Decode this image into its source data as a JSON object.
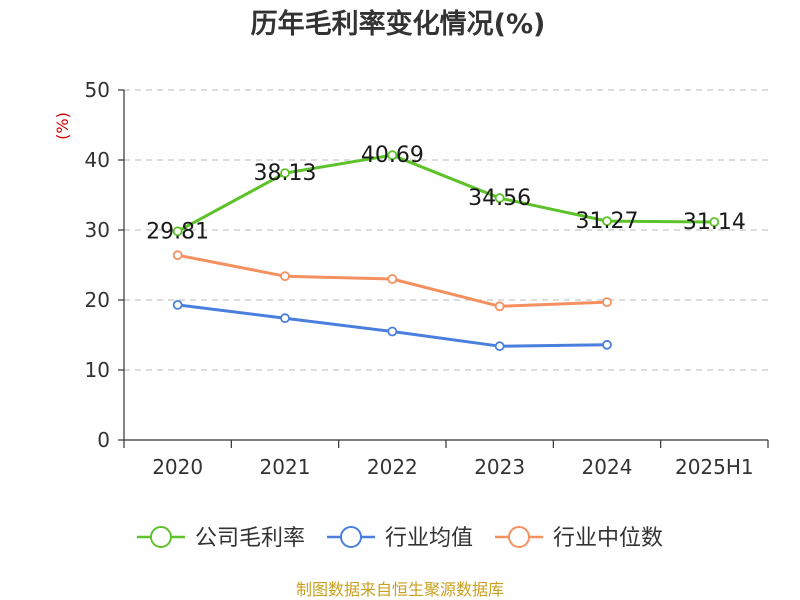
{
  "chart_data": {
    "type": "line",
    "title": "历年毛利率变化情况(%)",
    "ylabel": "(%)",
    "categories": [
      "2020",
      "2021",
      "2022",
      "2023",
      "2024",
      "2025H1"
    ],
    "ylim": [
      0,
      50
    ],
    "yticks": [
      "0",
      "10",
      "20",
      "30",
      "40",
      "50"
    ],
    "grid": true,
    "legend_position": "bottom",
    "series": [
      {
        "name": "公司毛利率",
        "color": "#5ec22b",
        "values": [
          29.81,
          38.13,
          40.69,
          34.56,
          31.27,
          31.14
        ],
        "labels": [
          "29.81",
          "38.13",
          "40.69",
          "34.56",
          "31.27",
          "31.14"
        ]
      },
      {
        "name": "行业均值",
        "color": "#4a7fdd",
        "values": [
          19.3,
          17.4,
          15.5,
          13.4,
          13.6,
          null
        ]
      },
      {
        "name": "行业中位数",
        "color": "#f59060",
        "values": [
          26.4,
          23.4,
          23.0,
          19.1,
          19.7,
          null
        ]
      }
    ]
  },
  "source": "制图数据来自恒生聚源数据库"
}
